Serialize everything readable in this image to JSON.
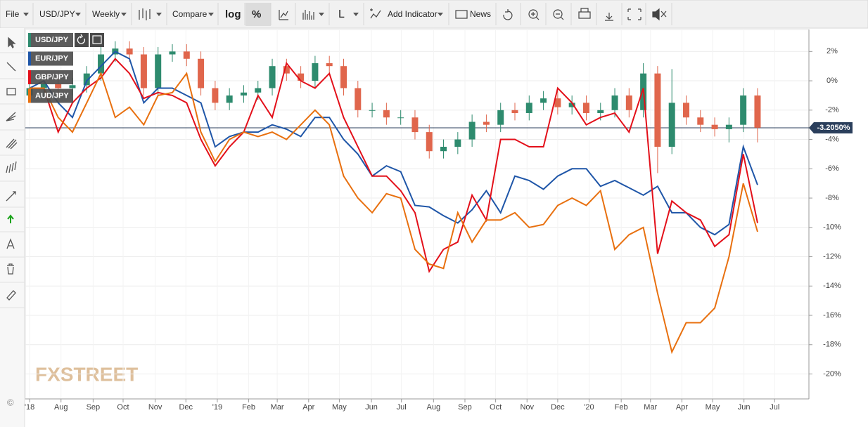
{
  "toolbar": {
    "items": [
      "File",
      "USD/JPY",
      "Weekly",
      "Compare",
      "log",
      "%",
      "L",
      "Add Indicator",
      "News"
    ]
  },
  "watermark": "FXSTREET",
  "copyright": "©",
  "chart_data": {
    "type": "candlestick",
    "x": [
      0,
      2,
      4,
      6,
      8,
      10,
      12,
      14,
      16,
      18,
      20,
      22,
      24,
      26,
      28,
      30,
      32,
      34,
      36,
      38,
      40,
      42,
      44,
      46,
      48,
      50,
      52,
      54,
      56,
      58,
      60,
      62,
      64,
      66,
      68,
      70,
      72,
      74,
      76,
      78,
      80,
      82,
      84,
      86,
      88,
      90,
      92,
      94,
      96,
      98,
      100,
      102
    ],
    "xlim": [
      -0.6,
      109.2
    ],
    "xticks": [
      {
        "value": 0,
        "label": "'18"
      },
      {
        "value": 4.4,
        "label": "Aug"
      },
      {
        "value": 8.9,
        "label": "Sep"
      },
      {
        "value": 13.1,
        "label": "Oct"
      },
      {
        "value": 17.6,
        "label": "Nov"
      },
      {
        "value": 21.9,
        "label": "Dec"
      },
      {
        "value": 26.3,
        "label": "'19"
      },
      {
        "value": 30.7,
        "label": "Feb"
      },
      {
        "value": 34.7,
        "label": "Mar"
      },
      {
        "value": 39.1,
        "label": "Apr"
      },
      {
        "value": 43.4,
        "label": "May"
      },
      {
        "value": 47.9,
        "label": "Jun"
      },
      {
        "value": 52.1,
        "label": "Jul"
      },
      {
        "value": 56.6,
        "label": "Aug"
      },
      {
        "value": 61,
        "label": "Sep"
      },
      {
        "value": 65.3,
        "label": "Oct"
      },
      {
        "value": 69.7,
        "label": "Nov"
      },
      {
        "value": 74,
        "label": "Dec"
      },
      {
        "value": 78.4,
        "label": "'20"
      },
      {
        "value": 82.9,
        "label": "Feb"
      },
      {
        "value": 87,
        "label": "Mar"
      },
      {
        "value": 91.4,
        "label": "Apr"
      },
      {
        "value": 95.7,
        "label": "May"
      },
      {
        "value": 100.1,
        "label": "Jun"
      },
      {
        "value": 104.4,
        "label": "Jul"
      }
    ],
    "ylim": [
      -21.7,
      3.5
    ],
    "yticks": [
      {
        "value": 2,
        "label": "2%"
      },
      {
        "value": 0,
        "label": "0%"
      },
      {
        "value": -2,
        "label": "-2%"
      },
      {
        "value": -4,
        "label": "-4%"
      },
      {
        "value": -6,
        "label": "-6%"
      },
      {
        "value": -8,
        "label": "-8%"
      },
      {
        "value": -10,
        "label": "-10%"
      },
      {
        "value": -12,
        "label": "-12%"
      },
      {
        "value": -14,
        "label": "-14%"
      },
      {
        "value": -16,
        "label": "-16%"
      },
      {
        "value": -18,
        "label": "-18%"
      },
      {
        "value": -20,
        "label": "-20%"
      }
    ],
    "grid": true,
    "last_value": {
      "value": -3.205,
      "label": "-3.2050%"
    },
    "series": [
      {
        "name": "USD/JPY",
        "type": "candlestick",
        "up_color": "#2e8b6e",
        "down_color": "#e0664c",
        "open": [
          -1.0,
          -0.5,
          -0.2,
          -0.5,
          -0.3,
          0.5,
          1.8,
          2.2,
          1.8,
          -0.5,
          1.8,
          2.0,
          1.5,
          -0.5,
          -1.5,
          -1.0,
          -0.8,
          -0.5,
          1.0,
          0.5,
          0.0,
          1.2,
          1.0,
          -0.5,
          -2.0,
          -2.0,
          -2.5,
          -2.5,
          -3.5,
          -4.8,
          -4.5,
          -4.0,
          -2.8,
          -3.0,
          -2.0,
          -2.2,
          -1.5,
          -1.2,
          -1.8,
          -1.5,
          -2.2,
          -2.0,
          -1.0,
          -2.0,
          0.5,
          -4.5,
          -1.5,
          -2.5,
          -3.0,
          -3.3,
          -3.0,
          -1.0
        ],
        "high": [
          0.0,
          0.3,
          0.3,
          0.2,
          1.0,
          2.3,
          2.7,
          2.7,
          2.3,
          2.3,
          2.5,
          2.5,
          2.0,
          0.0,
          -0.5,
          -0.3,
          0.0,
          1.5,
          1.5,
          1.0,
          1.7,
          1.7,
          1.5,
          0.0,
          -1.5,
          -1.5,
          -2.0,
          -2.0,
          -3.0,
          -4.0,
          -3.5,
          -2.3,
          -2.3,
          -1.5,
          -1.5,
          -1.0,
          -0.7,
          -0.7,
          -1.0,
          -1.0,
          -1.5,
          -0.5,
          -0.5,
          1.2,
          1.0,
          0.8,
          -1.0,
          -2.0,
          -2.5,
          -2.5,
          -0.5,
          -0.5
        ],
        "low": [
          -1.5,
          -1.0,
          -1.0,
          -1.0,
          -0.8,
          0.0,
          1.3,
          1.3,
          -1.0,
          -1.0,
          1.3,
          1.0,
          -1.0,
          -2.0,
          -2.0,
          -1.5,
          -1.3,
          -1.0,
          0.0,
          -0.5,
          -0.5,
          0.5,
          -1.0,
          -2.5,
          -2.5,
          -3.0,
          -3.0,
          -4.0,
          -5.3,
          -5.3,
          -5.0,
          -4.5,
          -3.5,
          -3.5,
          -2.7,
          -2.7,
          -2.0,
          -2.3,
          -2.3,
          -2.7,
          -2.7,
          -2.5,
          -2.5,
          -2.5,
          -6.3,
          -5.0,
          -3.0,
          -3.5,
          -3.8,
          -4.2,
          -3.5,
          -4.2
        ],
        "close": [
          -0.5,
          -0.2,
          -0.5,
          -0.3,
          0.5,
          1.8,
          2.2,
          1.8,
          -0.5,
          1.8,
          2.0,
          1.5,
          -0.5,
          -1.5,
          -1.0,
          -0.8,
          -0.5,
          1.0,
          0.5,
          0.0,
          1.2,
          1.0,
          -0.5,
          -2.0,
          -2.0,
          -2.5,
          -2.5,
          -3.5,
          -4.8,
          -4.5,
          -4.0,
          -2.8,
          -3.0,
          -2.0,
          -2.2,
          -1.5,
          -1.2,
          -1.8,
          -1.5,
          -2.2,
          -2.0,
          -1.0,
          -2.0,
          0.5,
          -4.5,
          -1.5,
          -2.5,
          -3.0,
          -3.3,
          -3.0,
          -1.0,
          -3.2
        ]
      },
      {
        "name": "EUR/JPY",
        "type": "line",
        "color": "#1f56a8",
        "values": [
          -0.5,
          0.0,
          -1.5,
          -2.5,
          0.0,
          1.0,
          2.0,
          1.5,
          -1.5,
          -0.5,
          -0.5,
          -1.0,
          -1.5,
          -4.5,
          -3.8,
          -3.5,
          -3.5,
          -3.0,
          -3.3,
          -3.8,
          -2.5,
          -2.5,
          -4.0,
          -5.0,
          -6.5,
          -5.8,
          -6.2,
          -8.5,
          -8.6,
          -9.2,
          -9.7,
          -8.8,
          -7.5,
          -9.0,
          -6.5,
          -6.8,
          -7.4,
          -6.5,
          -6.0,
          -6.0,
          -7.2,
          -6.8,
          -7.3,
          -7.8,
          -7.2,
          -9.0,
          -9.0,
          -10.0,
          -10.5,
          -9.8,
          -4.5,
          -7.1
        ]
      },
      {
        "name": "GBP/JPY",
        "type": "line",
        "color": "#e3101a",
        "values": [
          -0.5,
          -0.5,
          -3.5,
          -1.5,
          -0.5,
          0.2,
          1.5,
          0.5,
          -1.2,
          -0.8,
          -1.0,
          -1.5,
          -4.0,
          -5.8,
          -4.5,
          -3.5,
          -1.0,
          -2.5,
          1.2,
          0.0,
          -0.5,
          0.5,
          -2.5,
          -4.5,
          -6.5,
          -6.5,
          -7.5,
          -9.0,
          -13.0,
          -11.5,
          -11.0,
          -7.8,
          -9.5,
          -4.0,
          -4.0,
          -4.5,
          -4.5,
          -0.5,
          -1.5,
          -3.0,
          -2.5,
          -2.2,
          -3.5,
          -0.5,
          -11.8,
          -8.2,
          -9.0,
          -9.5,
          -11.3,
          -10.5,
          -5.0,
          -9.7
        ]
      },
      {
        "name": "AUD/JPY",
        "type": "line",
        "color": "#e8700f",
        "values": [
          -0.5,
          -0.5,
          -2.5,
          -3.5,
          -1.5,
          0.5,
          -2.5,
          -1.8,
          -3.0,
          -1.0,
          -0.8,
          0.5,
          -3.5,
          -5.5,
          -4.0,
          -3.5,
          -3.8,
          -3.5,
          -4.0,
          -3.0,
          -2.0,
          -3.0,
          -6.5,
          -8.0,
          -9.0,
          -7.7,
          -8.0,
          -11.5,
          -12.5,
          -12.8,
          -9.0,
          -11.0,
          -9.5,
          -9.5,
          -9.0,
          -10.0,
          -9.8,
          -8.5,
          -8.0,
          -8.5,
          -7.5,
          -11.5,
          -10.5,
          -10.0,
          -14.5,
          -18.5,
          -16.5,
          -16.5,
          -15.5,
          -12.0,
          -7.0,
          -10.3
        ]
      }
    ]
  }
}
